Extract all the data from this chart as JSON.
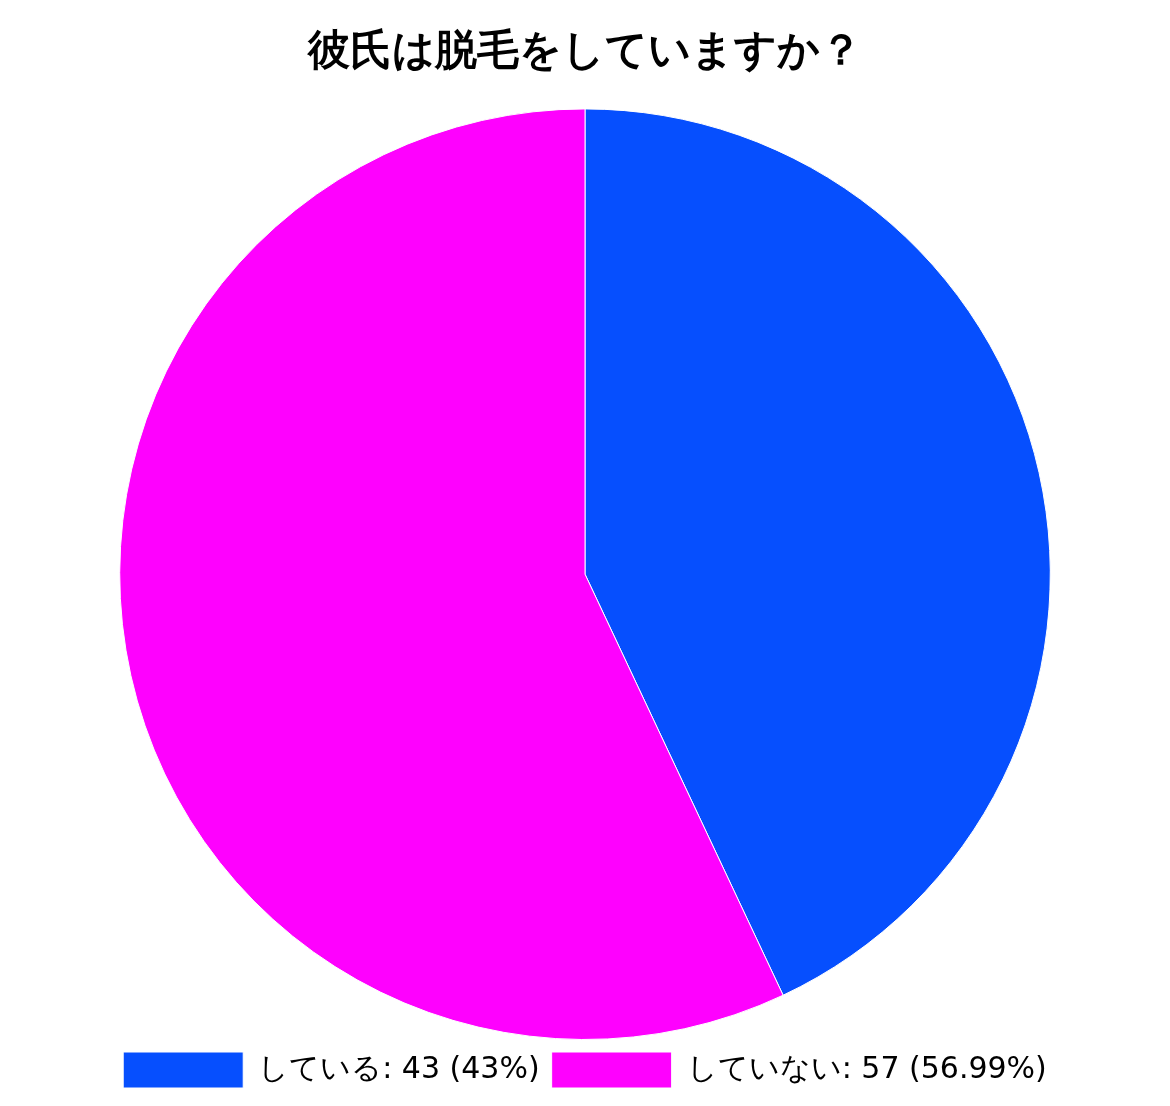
{
  "chart_data": {
    "type": "pie",
    "title": "彼氏は脱毛をしていますか？",
    "categories": [
      "している: 43 (43%)",
      "していない: 57 (56.99%)"
    ],
    "values": [
      43,
      57
    ],
    "colors": [
      "#064ffe",
      "#fe01fe"
    ],
    "legend": "bottom"
  }
}
